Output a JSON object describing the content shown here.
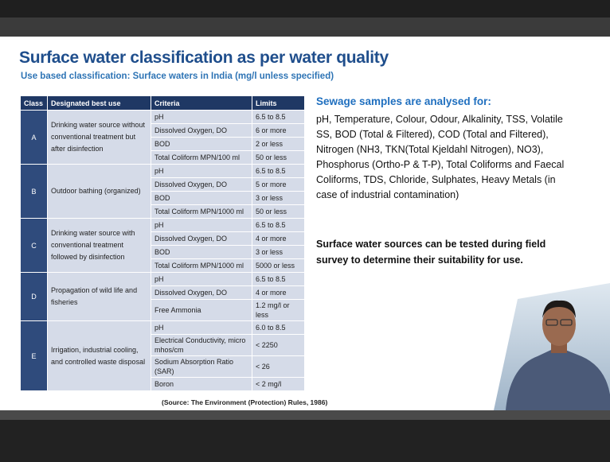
{
  "title": "Surface water classification as per water quality",
  "subtitle": "Use based classification: Surface waters in India (mg/l unless specified)",
  "table": {
    "header": [
      "Class",
      "Designated best use",
      "Criteria",
      "Limits"
    ],
    "rows": [
      {
        "class": "A",
        "use": "Drinking water source without conventional treatment but after disinfection",
        "criteria": [
          [
            "pH",
            "6.5 to 8.5"
          ],
          [
            "Dissolved Oxygen, DO",
            "6 or more"
          ],
          [
            "BOD",
            "2 or less"
          ],
          [
            "Total Coliform MPN/100 ml",
            "50 or less"
          ]
        ]
      },
      {
        "class": "B",
        "use": "Outdoor bathing (organized)",
        "criteria": [
          [
            "pH",
            "6.5 to 8.5"
          ],
          [
            "Dissolved Oxygen, DO",
            "5 or more"
          ],
          [
            "BOD",
            "3 or less"
          ],
          [
            "Total Coliform MPN/1000 ml",
            "50 or less"
          ]
        ]
      },
      {
        "class": "C",
        "use": "Drinking water source with conventional treatment followed by disinfection",
        "criteria": [
          [
            "pH",
            "6.5 to 8.5"
          ],
          [
            "Dissolved Oxygen, DO",
            "4 or more"
          ],
          [
            "BOD",
            "3 or less"
          ],
          [
            "Total Coliform MPN/1000 ml",
            "5000 or less"
          ]
        ]
      },
      {
        "class": "D",
        "use": "Propagation of wild life and fisheries",
        "criteria": [
          [
            "pH",
            "6.5 to 8.5"
          ],
          [
            "Dissolved Oxygen, DO",
            "4 or more"
          ],
          [
            "Free Ammonia",
            "1.2 mg/l or less"
          ]
        ]
      },
      {
        "class": "E",
        "use": "Irrigation, industrial cooling, and controlled waste disposal",
        "criteria": [
          [
            "pH",
            "6.0 to 8.5"
          ],
          [
            "Electrical Conductivity, micro mhos/cm",
            "< 2250"
          ],
          [
            "Sodium Absorption Ratio (SAR)",
            "< 26"
          ],
          [
            "Boron",
            "< 2 mg/l"
          ]
        ]
      }
    ]
  },
  "source": "(Source: The Environment (Protection) Rules, 1986)",
  "sewage": {
    "heading": "Sewage  samples are analysed for:",
    "text": "pH, Temperature, Colour, Odour, Alkalinity, TSS, Volatile SS, BOD (Total & Filtered), COD (Total and Filtered), Nitrogen (NH3, TKN(Total Kjeldahl Nitrogen), NO3), Phosphorus (Ortho-P & T-P), Total Coliforms and Faecal Coliforms, TDS, Chloride, Sulphates, Heavy Metals (in case of industrial contamination)"
  },
  "note": "Surface water sources can be tested during field survey to determine their suitability for use."
}
